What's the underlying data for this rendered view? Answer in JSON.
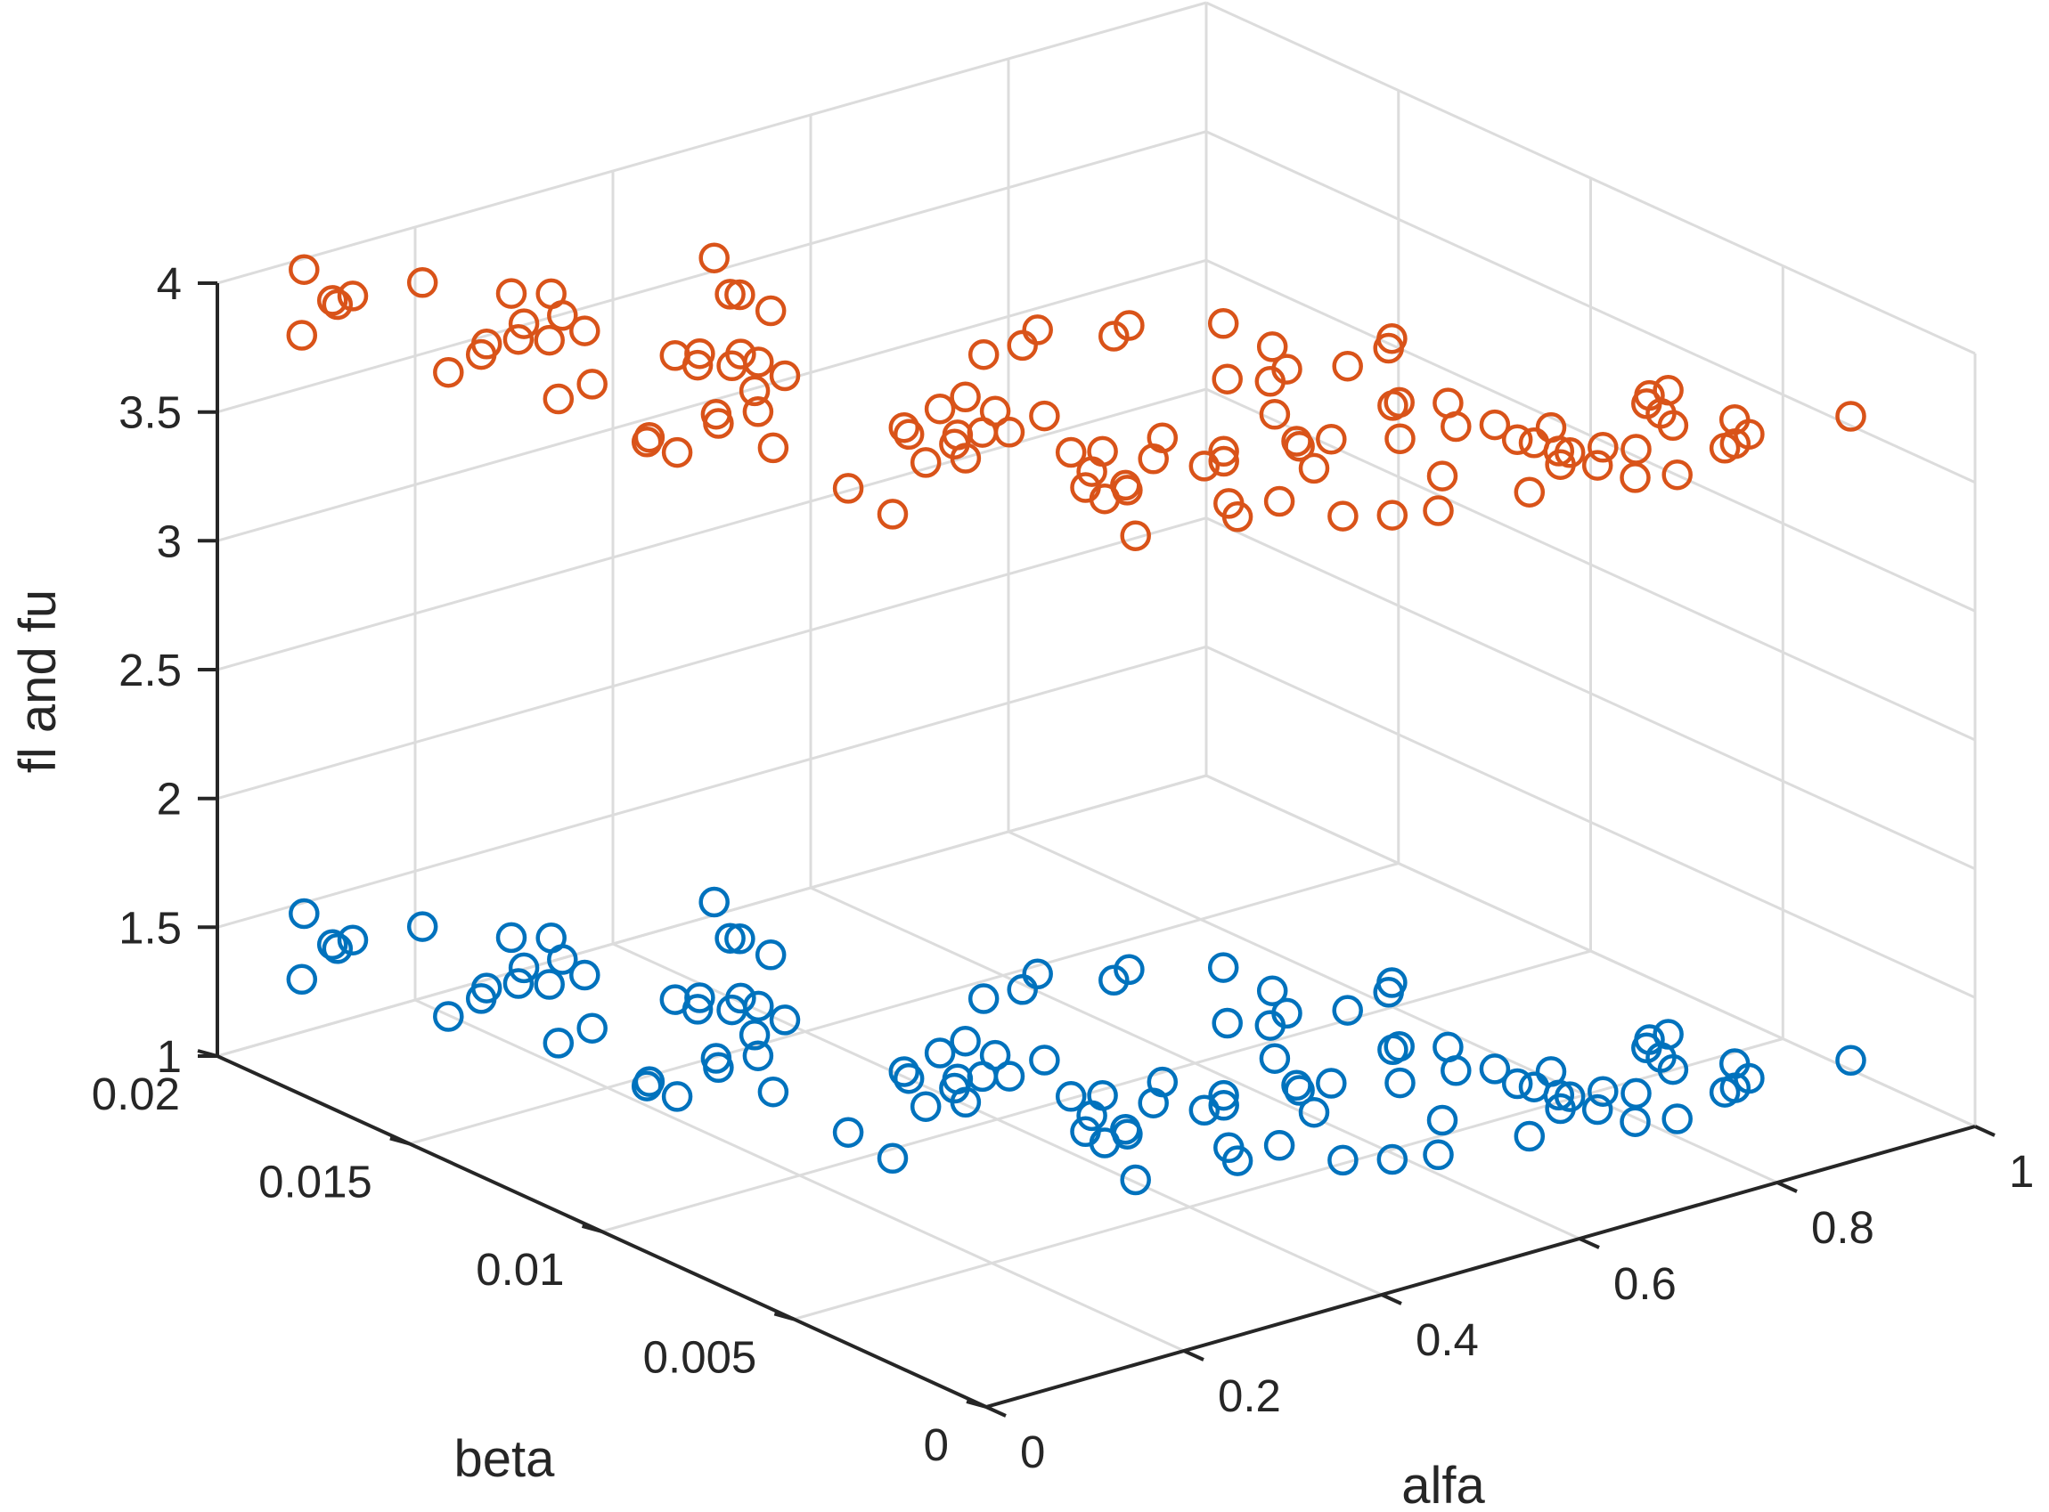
{
  "chart_data": {
    "type": "scatter3d",
    "title": "",
    "xlabel": "alfa",
    "ylabel": "beta",
    "zlabel": "fl and fu",
    "xlim": [
      0,
      1
    ],
    "ylim": [
      0,
      0.02
    ],
    "zlim": [
      1,
      4
    ],
    "grid": true,
    "xticks": [
      "0",
      "0.2",
      "0.4",
      "0.6",
      "0.8",
      "1"
    ],
    "yticks": [
      "0",
      "0.005",
      "0.01",
      "0.015",
      "0.02"
    ],
    "zticks": [
      "1",
      "1.5",
      "2",
      "2.5",
      "3",
      "3.5",
      "4"
    ],
    "colors": {
      "fl": "#0072BD",
      "fu": "#D95319",
      "axis": "#262626",
      "grid": "#DCDCDC"
    },
    "series": [
      {
        "name": "fl",
        "color": "#0072BD",
        "points": [
          [
            0.066,
            0.0195,
            1.26
          ],
          [
            0.102,
            0.0195,
            1.34
          ],
          [
            0.041,
            0.0188,
            1.59
          ],
          [
            0.067,
            0.0182,
            1.5
          ],
          [
            0.027,
            0.0177,
            1.56
          ],
          [
            0.083,
            0.0168,
            1.63
          ],
          [
            0.082,
            0.0161,
            1.33
          ],
          [
            0.134,
            0.0158,
            1.6
          ],
          [
            0.104,
            0.0147,
            1.59
          ],
          [
            0.053,
            0.0145,
            1.54
          ],
          [
            0.122,
            0.0145,
            1.52
          ],
          [
            0.039,
            0.014,
            1.63
          ],
          [
            0.138,
            0.0138,
            1.38
          ],
          [
            0.081,
            0.0134,
            1.82
          ],
          [
            0.111,
            0.0133,
            1.65
          ],
          [
            0.044,
            0.0133,
            1.69
          ],
          [
            0.183,
            0.0128,
            1.51
          ],
          [
            0.069,
            0.0128,
            1.79
          ],
          [
            0.065,
            0.0128,
            1.47
          ],
          [
            0.198,
            0.0126,
            1.47
          ],
          [
            0.207,
            0.0124,
            1.89
          ],
          [
            0.139,
            0.0124,
            1.25
          ],
          [
            0.229,
            0.0123,
            1.73
          ],
          [
            0.226,
            0.0122,
            1.51
          ],
          [
            0.154,
            0.012,
            1.22
          ],
          [
            0.122,
            0.0119,
            1.32
          ],
          [
            0.259,
            0.0119,
            1.41
          ],
          [
            0.237,
            0.0117,
            1.7
          ],
          [
            0.192,
            0.0116,
            1.82
          ],
          [
            0.209,
            0.0114,
            1.44
          ],
          [
            0.205,
            0.0112,
            1.57
          ],
          [
            0.134,
            0.0109,
            1.7
          ],
          [
            0.149,
            0.0108,
            1.42
          ],
          [
            0.139,
            0.0106,
            1.48
          ],
          [
            0.185,
            0.0103,
            1.32
          ],
          [
            0.158,
            0.01,
            1.51
          ],
          [
            0.12,
            0.0097,
            1.75
          ],
          [
            0.295,
            0.0096,
            1.3
          ],
          [
            0.307,
            0.0091,
            1.42
          ],
          [
            0.259,
            0.0088,
            1.42
          ],
          [
            0.187,
            0.0084,
            1.29
          ],
          [
            0.324,
            0.0084,
            1.66
          ],
          [
            0.298,
            0.0082,
            1.3
          ],
          [
            0.286,
            0.0081,
            1.41
          ],
          [
            0.275,
            0.0079,
            1.4
          ],
          [
            0.366,
            0.0079,
            1.41
          ],
          [
            0.246,
            0.0079,
            1.36
          ],
          [
            0.336,
            0.0077,
            1.73
          ],
          [
            0.315,
            0.0075,
            1.43
          ],
          [
            0.197,
            0.0075,
            1.24
          ],
          [
            0.289,
            0.0072,
            1.56
          ],
          [
            0.328,
            0.0071,
            1.84
          ],
          [
            0.251,
            0.007,
            1.67
          ],
          [
            0.354,
            0.0069,
            1.35
          ],
          [
            0.382,
            0.0068,
            1.33
          ],
          [
            0.245,
            0.0064,
            1.58
          ],
          [
            0.414,
            0.0063,
            1.3
          ],
          [
            0.374,
            0.0063,
            1.82
          ],
          [
            0.37,
            0.0058,
            1.9
          ],
          [
            0.322,
            0.0057,
            1.33
          ],
          [
            0.392,
            0.0055,
            1.46
          ],
          [
            0.322,
            0.0052,
            1.32
          ],
          [
            0.446,
            0.0052,
            1.65
          ],
          [
            0.442,
            0.0052,
            1.87
          ],
          [
            0.343,
            0.0052,
            1.35
          ],
          [
            0.309,
            0.0052,
            1.44
          ],
          [
            0.341,
            0.0051,
            1.34
          ],
          [
            0.476,
            0.0048,
            1.77
          ],
          [
            0.423,
            0.0047,
            1.39
          ],
          [
            0.419,
            0.0046,
            1.44
          ],
          [
            0.466,
            0.0046,
            1.66
          ],
          [
            0.326,
            0.0045,
            1.22
          ],
          [
            0.479,
            0.0045,
            1.7
          ],
          [
            0.459,
            0.0043,
            1.56
          ],
          [
            0.48,
            0.0042,
            1.42
          ],
          [
            0.521,
            0.004,
            1.7
          ],
          [
            0.376,
            0.004,
            1.47
          ],
          [
            0.393,
            0.0038,
            1.32
          ],
          [
            0.398,
            0.0037,
            1.27
          ],
          [
            0.543,
            0.0035,
            1.78
          ],
          [
            0.485,
            0.0035,
            1.49
          ],
          [
            0.45,
            0.0035,
            1.52
          ],
          [
            0.546,
            0.0033,
            1.58
          ],
          [
            0.417,
            0.0031,
            1.35
          ],
          [
            0.539,
            0.0031,
            1.46
          ],
          [
            0.452,
            0.0031,
            1.44
          ],
          [
            0.523,
            0.0029,
            1.88
          ],
          [
            0.52,
            0.0028,
            1.63
          ],
          [
            0.58,
            0.0027,
            1.49
          ],
          [
            0.572,
            0.0027,
            1.59
          ],
          [
            0.454,
            0.0024,
            1.3
          ],
          [
            0.5,
            0.0023,
            1.26
          ],
          [
            0.596,
            0.0021,
            1.52
          ],
          [
            0.535,
            0.002,
            1.26
          ],
          [
            0.539,
            0.002,
            1.39
          ],
          [
            0.611,
            0.0019,
            1.46
          ],
          [
            0.645,
            0.0019,
            1.47
          ],
          [
            0.653,
            0.0019,
            1.37
          ],
          [
            0.624,
            0.0018,
            1.44
          ],
          [
            0.73,
            0.0016,
            1.49
          ],
          [
            0.729,
            0.0015,
            1.53
          ],
          [
            0.748,
            0.0015,
            1.53
          ],
          [
            0.639,
            0.0015,
            1.36
          ],
          [
            0.682,
            0.0015,
            1.38
          ],
          [
            0.733,
            0.0013,
            1.47
          ],
          [
            0.745,
            0.0013,
            1.41
          ],
          [
            0.596,
            0.0012,
            1.32
          ],
          [
            0.703,
            0.0012,
            1.26
          ],
          [
            0.661,
            0.0011,
            1.36
          ],
          [
            0.633,
            0.0011,
            1.44
          ],
          [
            0.7,
            0.0011,
            1.38
          ],
          [
            0.778,
            0.0008,
            1.32
          ],
          [
            0.788,
            0.0008,
            1.42
          ],
          [
            0.726,
            0.0007,
            1.28
          ],
          [
            0.791,
            0.0005,
            1.38
          ],
          [
            0.773,
            0.0004,
            1.37
          ],
          [
            0.886,
            0.0003,
            1.36
          ]
        ]
      },
      {
        "name": "fu",
        "color": "#D95319",
        "points": [
          [
            0.066,
            0.0195,
            3.76
          ],
          [
            0.102,
            0.0195,
            3.84
          ],
          [
            0.041,
            0.0188,
            4.09
          ],
          [
            0.067,
            0.0182,
            4.0
          ],
          [
            0.027,
            0.0177,
            4.06
          ],
          [
            0.083,
            0.0168,
            4.13
          ],
          [
            0.082,
            0.0161,
            3.83
          ],
          [
            0.134,
            0.0158,
            4.1
          ],
          [
            0.104,
            0.0147,
            4.09
          ],
          [
            0.053,
            0.0145,
            4.04
          ],
          [
            0.122,
            0.0145,
            4.02
          ],
          [
            0.039,
            0.014,
            4.13
          ],
          [
            0.138,
            0.0138,
            3.88
          ],
          [
            0.081,
            0.0134,
            4.32
          ],
          [
            0.111,
            0.0133,
            4.15
          ],
          [
            0.044,
            0.0133,
            4.19
          ],
          [
            0.183,
            0.0128,
            4.01
          ],
          [
            0.069,
            0.0128,
            4.29
          ],
          [
            0.065,
            0.0128,
            3.97
          ],
          [
            0.198,
            0.0126,
            3.97
          ],
          [
            0.207,
            0.0124,
            4.39
          ],
          [
            0.139,
            0.0124,
            3.75
          ],
          [
            0.229,
            0.0123,
            4.23
          ],
          [
            0.226,
            0.0122,
            4.01
          ],
          [
            0.154,
            0.012,
            3.72
          ],
          [
            0.122,
            0.0119,
            3.82
          ],
          [
            0.259,
            0.0119,
            3.91
          ],
          [
            0.237,
            0.0117,
            4.2
          ],
          [
            0.192,
            0.0116,
            4.32
          ],
          [
            0.209,
            0.0114,
            3.94
          ],
          [
            0.205,
            0.0112,
            4.07
          ],
          [
            0.134,
            0.0109,
            4.2
          ],
          [
            0.149,
            0.0108,
            3.92
          ],
          [
            0.139,
            0.0106,
            3.98
          ],
          [
            0.185,
            0.0103,
            3.82
          ],
          [
            0.158,
            0.01,
            4.01
          ],
          [
            0.12,
            0.0097,
            4.25
          ],
          [
            0.295,
            0.0096,
            3.8
          ],
          [
            0.307,
            0.0091,
            3.92
          ],
          [
            0.259,
            0.0088,
            3.92
          ],
          [
            0.187,
            0.0084,
            3.79
          ],
          [
            0.324,
            0.0084,
            4.16
          ],
          [
            0.298,
            0.0082,
            3.8
          ],
          [
            0.286,
            0.0081,
            3.91
          ],
          [
            0.275,
            0.0079,
            3.9
          ],
          [
            0.366,
            0.0079,
            3.91
          ],
          [
            0.246,
            0.0079,
            3.86
          ],
          [
            0.336,
            0.0077,
            4.23
          ],
          [
            0.315,
            0.0075,
            3.93
          ],
          [
            0.197,
            0.0075,
            3.74
          ],
          [
            0.289,
            0.0072,
            4.06
          ],
          [
            0.328,
            0.0071,
            4.34
          ],
          [
            0.251,
            0.007,
            4.17
          ],
          [
            0.354,
            0.0069,
            3.85
          ],
          [
            0.382,
            0.0068,
            3.83
          ],
          [
            0.245,
            0.0064,
            4.08
          ],
          [
            0.414,
            0.0063,
            3.8
          ],
          [
            0.374,
            0.0063,
            4.32
          ],
          [
            0.37,
            0.0058,
            4.4
          ],
          [
            0.322,
            0.0057,
            3.83
          ],
          [
            0.392,
            0.0055,
            3.96
          ],
          [
            0.322,
            0.0052,
            3.82
          ],
          [
            0.446,
            0.0052,
            4.15
          ],
          [
            0.442,
            0.0052,
            4.37
          ],
          [
            0.343,
            0.0052,
            3.85
          ],
          [
            0.309,
            0.0052,
            3.94
          ],
          [
            0.341,
            0.0051,
            3.84
          ],
          [
            0.476,
            0.0048,
            4.27
          ],
          [
            0.423,
            0.0047,
            3.89
          ],
          [
            0.419,
            0.0046,
            3.94
          ],
          [
            0.466,
            0.0046,
            4.16
          ],
          [
            0.326,
            0.0045,
            3.72
          ],
          [
            0.479,
            0.0045,
            4.2
          ],
          [
            0.459,
            0.0043,
            4.06
          ],
          [
            0.48,
            0.0042,
            3.92
          ],
          [
            0.521,
            0.004,
            4.2
          ],
          [
            0.376,
            0.004,
            3.97
          ],
          [
            0.393,
            0.0038,
            3.82
          ],
          [
            0.398,
            0.0037,
            3.77
          ],
          [
            0.543,
            0.0035,
            4.28
          ],
          [
            0.485,
            0.0035,
            3.99
          ],
          [
            0.45,
            0.0035,
            4.02
          ],
          [
            0.546,
            0.0033,
            4.08
          ],
          [
            0.417,
            0.0031,
            3.85
          ],
          [
            0.539,
            0.0031,
            3.96
          ],
          [
            0.452,
            0.0031,
            3.94
          ],
          [
            0.523,
            0.0029,
            4.38
          ],
          [
            0.52,
            0.0028,
            4.13
          ],
          [
            0.58,
            0.0027,
            3.99
          ],
          [
            0.572,
            0.0027,
            4.09
          ],
          [
            0.454,
            0.0024,
            3.8
          ],
          [
            0.5,
            0.0023,
            3.76
          ],
          [
            0.596,
            0.0021,
            4.02
          ],
          [
            0.535,
            0.002,
            3.76
          ],
          [
            0.539,
            0.002,
            3.89
          ],
          [
            0.611,
            0.0019,
            3.96
          ],
          [
            0.645,
            0.0019,
            3.97
          ],
          [
            0.653,
            0.0019,
            3.87
          ],
          [
            0.624,
            0.0018,
            3.94
          ],
          [
            0.73,
            0.0016,
            3.99
          ],
          [
            0.729,
            0.0015,
            4.03
          ],
          [
            0.748,
            0.0015,
            4.03
          ],
          [
            0.639,
            0.0015,
            3.86
          ],
          [
            0.682,
            0.0015,
            3.88
          ],
          [
            0.733,
            0.0013,
            3.97
          ],
          [
            0.745,
            0.0013,
            3.91
          ],
          [
            0.596,
            0.0012,
            3.82
          ],
          [
            0.703,
            0.0012,
            3.76
          ],
          [
            0.661,
            0.0011,
            3.86
          ],
          [
            0.633,
            0.0011,
            3.94
          ],
          [
            0.7,
            0.0011,
            3.88
          ],
          [
            0.778,
            0.0008,
            3.82
          ],
          [
            0.788,
            0.0008,
            3.92
          ],
          [
            0.726,
            0.0007,
            3.78
          ],
          [
            0.791,
            0.0005,
            3.88
          ],
          [
            0.773,
            0.0004,
            3.87
          ],
          [
            0.886,
            0.0003,
            3.86
          ]
        ]
      }
    ]
  }
}
